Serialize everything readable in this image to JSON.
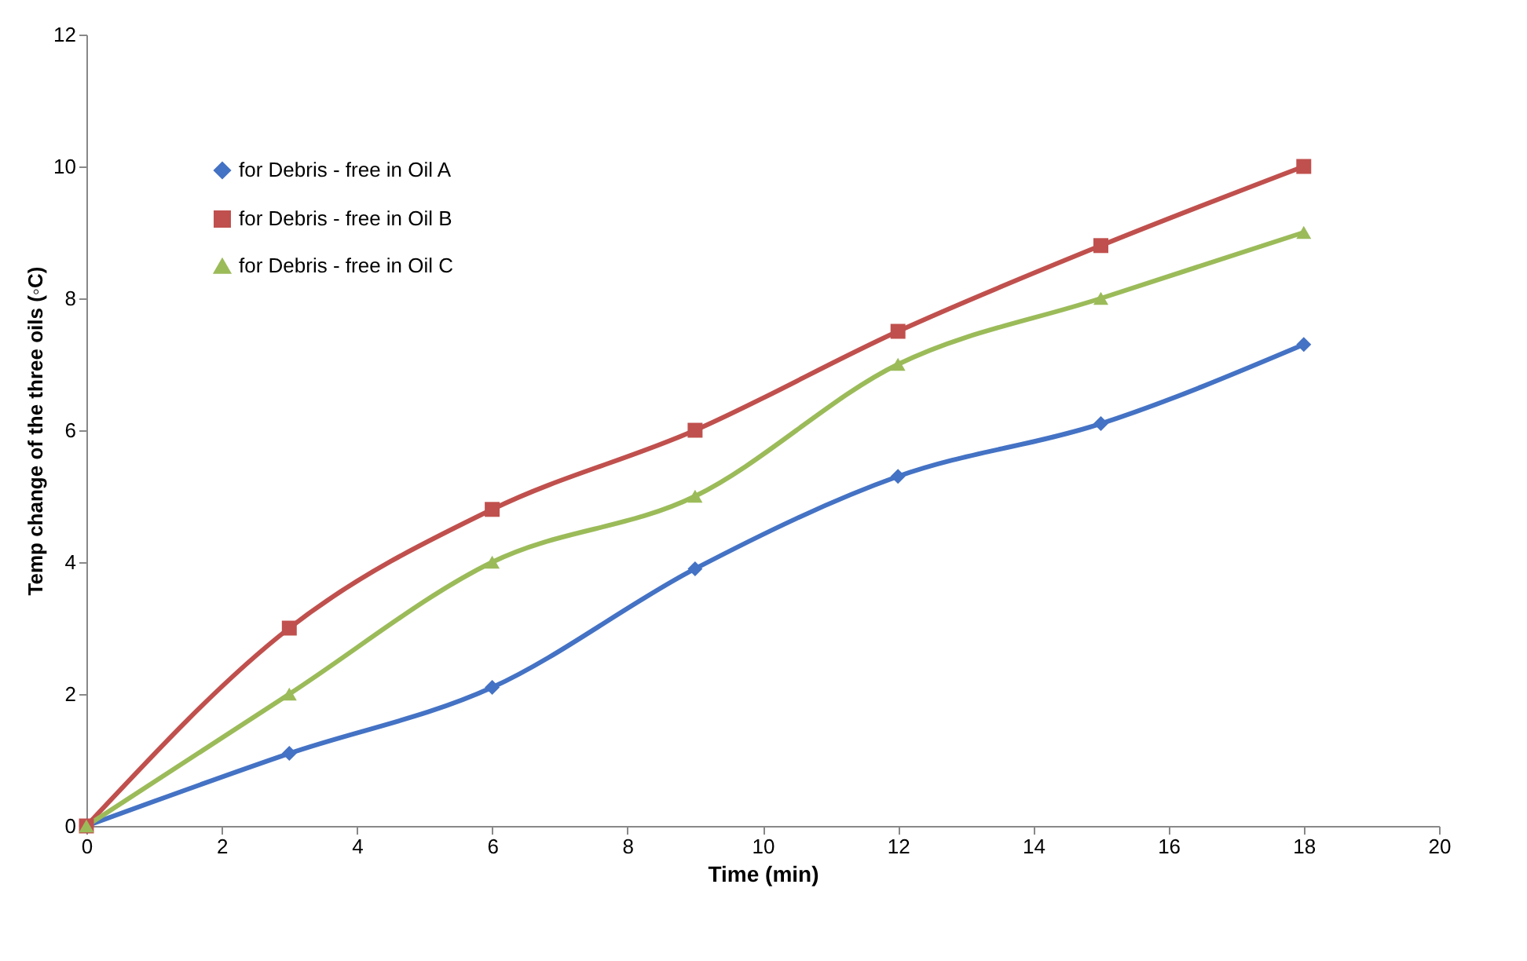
{
  "chart_data": {
    "type": "line",
    "xlabel": "Time  (min)",
    "ylabel": "Temp change of the three oils (◦C)",
    "x": [
      0,
      3,
      6,
      9,
      12,
      15,
      18
    ],
    "series": [
      {
        "name": "for Debris - free in Oil A",
        "color": "#4472c4",
        "marker": "diamond",
        "values": [
          0,
          1.1,
          2.1,
          3.9,
          5.3,
          6.1,
          7.3
        ]
      },
      {
        "name": "for Debris - free in Oil B",
        "color": "#c0504d",
        "marker": "square",
        "values": [
          0,
          3,
          4.8,
          6,
          7.5,
          8.8,
          10
        ]
      },
      {
        "name": "for Debris - free in Oil C",
        "color": "#9bbb59",
        "marker": "triangle",
        "values": [
          0,
          2,
          4,
          5,
          7,
          8,
          9
        ]
      }
    ],
    "xlim": [
      0,
      20
    ],
    "xticks": [
      0,
      2,
      4,
      6,
      8,
      10,
      12,
      14,
      16,
      18,
      20
    ],
    "ylim": [
      0,
      12
    ],
    "yticks": [
      0,
      2,
      4,
      6,
      8,
      10,
      12
    ],
    "grid": false,
    "legend": "top left",
    "line_style": "solid"
  }
}
